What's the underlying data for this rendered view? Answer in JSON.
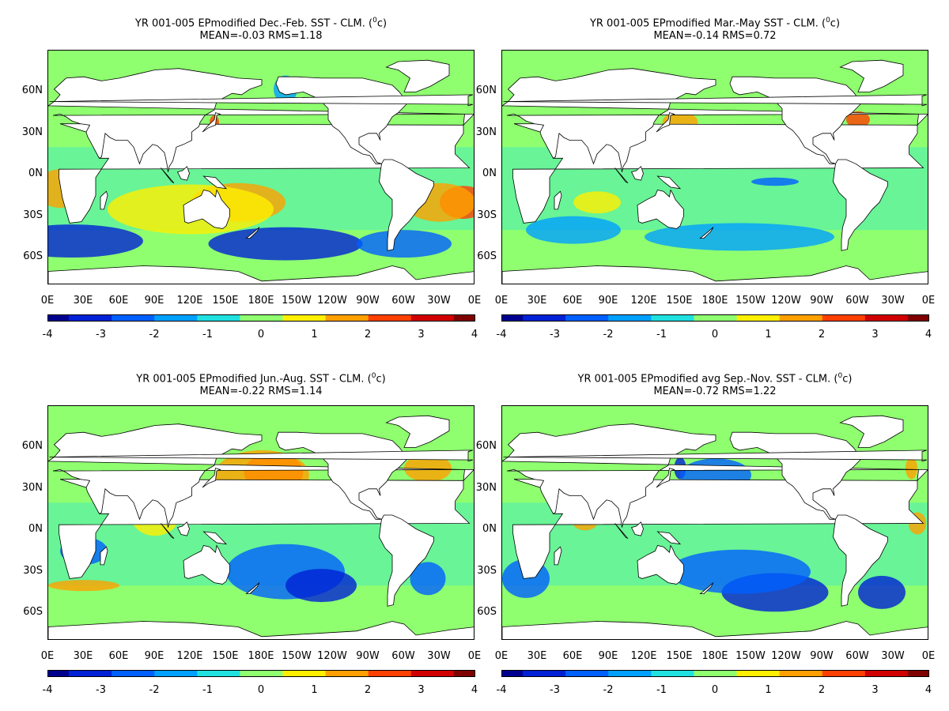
{
  "axes": {
    "lat_labels": [
      "60N",
      "30N",
      "0N",
      "30S",
      "60S"
    ],
    "lon_labels": [
      "0E",
      "30E",
      "60E",
      "90E",
      "120E",
      "150E",
      "180E",
      "150W",
      "120W",
      "90W",
      "60W",
      "30W",
      "0E"
    ],
    "lat_range": [
      -80,
      90
    ],
    "lon_range": [
      0,
      360
    ]
  },
  "colorbar": {
    "range": [
      -4,
      4
    ],
    "tick_labels": [
      "-4",
      "-3",
      "-2",
      "-1",
      "0",
      "1",
      "2",
      "3",
      "4"
    ],
    "colors": [
      "#00008f",
      "#0021d6",
      "#0060ff",
      "#00a0ff",
      "#20e0e0",
      "#8fff70",
      "#ffef00",
      "#ffa000",
      "#ff4000",
      "#d00000",
      "#800000"
    ]
  },
  "panels": [
    {
      "title": "YR 001-005 EPmodified  Dec.-Feb. SST - CLM. (",
      "units": "c)",
      "stats": "MEAN=-0.03   RMS=1.18",
      "mean": -0.03,
      "rms": 1.18,
      "season": "DJF"
    },
    {
      "title": "YR 001-005 EPmodified Mar.-May SST - CLM. (",
      "units": "c)",
      "stats": "MEAN=-0.14   RMS=0.72",
      "mean": -0.14,
      "rms": 0.72,
      "season": "MAM"
    },
    {
      "title": "YR 001-005 EPmodified Jun.-Aug. SST - CLM. (",
      "units": "c)",
      "stats": "MEAN=-0.22   RMS=1.14",
      "mean": -0.22,
      "rms": 1.14,
      "season": "JJA"
    },
    {
      "title": "YR 001-005 EPmodified avg Sep.-Nov. SST - CLM. (",
      "units": "c)",
      "stats": "MEAN=-0.72   RMS=1.22",
      "mean": -0.72,
      "rms": 1.22,
      "season": "SON"
    }
  ]
}
